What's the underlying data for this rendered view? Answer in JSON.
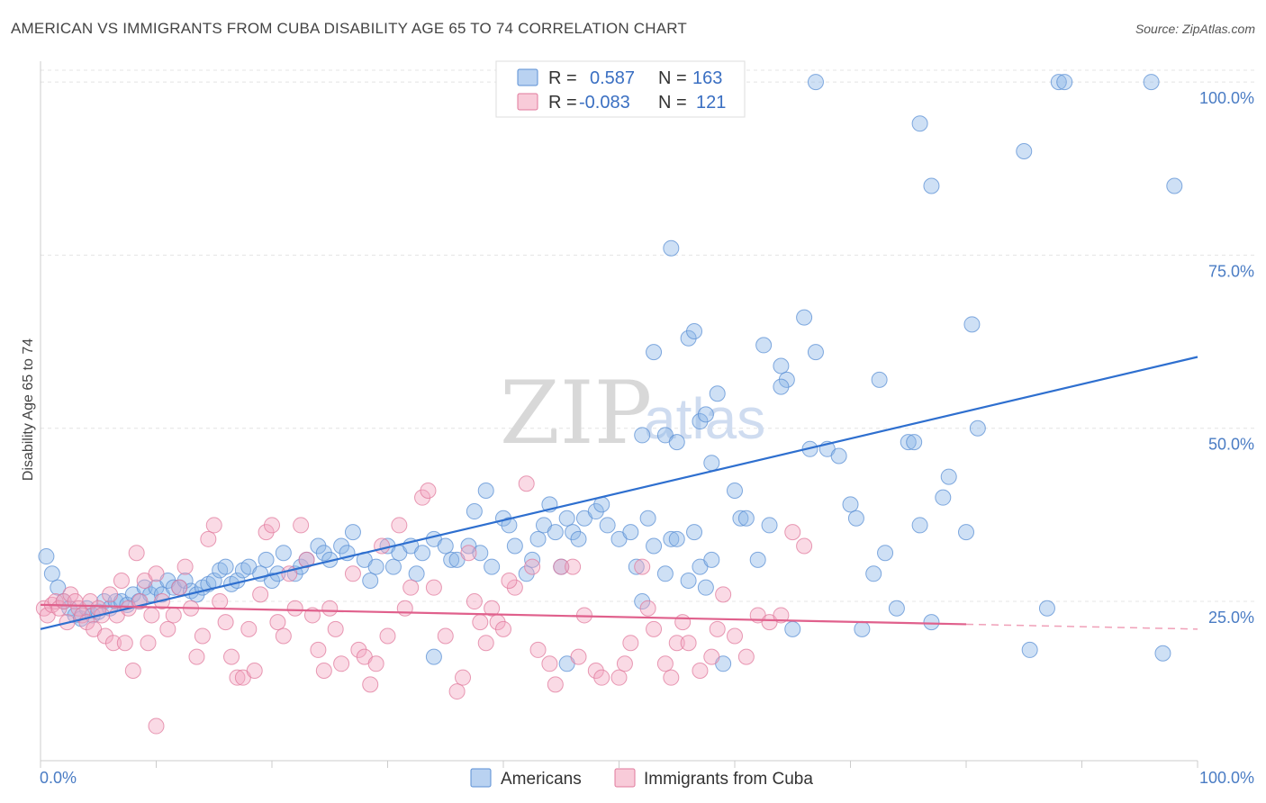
{
  "header": {
    "title": "AMERICAN VS IMMIGRANTS FROM CUBA DISABILITY AGE 65 TO 74 CORRELATION CHART",
    "source": "Source: ZipAtlas.com"
  },
  "watermark": {
    "zip": "ZIP",
    "atlas": "atlas"
  },
  "chart_data": {
    "type": "scatter",
    "title": "AMERICAN VS IMMIGRANTS FROM CUBA DISABILITY AGE 65 TO 74 CORRELATION CHART",
    "xlabel": "",
    "ylabel": "Disability Age 65 to 74",
    "xlim": [
      0,
      100
    ],
    "ylim": [
      2,
      103
    ],
    "x_tick_labels": [
      "0.0%",
      "100.0%"
    ],
    "y_ticks": [
      25,
      50,
      75,
      100
    ],
    "y_tick_labels": [
      "25.0%",
      "50.0%",
      "75.0%",
      "100.0%"
    ],
    "grid": true,
    "legend_position": "top-center",
    "legend": {
      "r_label": "R =",
      "n_label": "N =",
      "rows": [
        {
          "series": "Americans",
          "r": "0.587",
          "n": "163",
          "color": "#8ab4e8"
        },
        {
          "series": "Immigrants from Cuba",
          "r": "-0.083",
          "n": "121",
          "color": "#f4a8c0"
        }
      ]
    },
    "series": [
      {
        "name": "Americans",
        "color": "#8ab4e8",
        "stroke": "#5a8fd4",
        "trend": {
          "x": [
            0,
            100
          ],
          "y": [
            21.0,
            60.3
          ],
          "color": "#2e6fcf"
        },
        "points": [
          [
            0.5,
            31.5
          ],
          [
            1,
            29
          ],
          [
            1.5,
            27
          ],
          [
            2,
            25
          ],
          [
            2.5,
            24
          ],
          [
            3,
            23
          ],
          [
            3.5,
            22.5
          ],
          [
            4,
            24
          ],
          [
            4.5,
            23
          ],
          [
            5,
            23.5
          ],
          [
            5.5,
            25
          ],
          [
            6,
            24
          ],
          [
            6.5,
            25
          ],
          [
            7,
            25
          ],
          [
            7.5,
            24.5
          ],
          [
            8,
            26
          ],
          [
            8.5,
            25
          ],
          [
            9,
            27
          ],
          [
            9.5,
            26
          ],
          [
            10,
            27
          ],
          [
            10.5,
            26
          ],
          [
            11,
            28
          ],
          [
            11.5,
            27
          ],
          [
            12,
            27
          ],
          [
            12.5,
            28
          ],
          [
            13,
            26.5
          ],
          [
            13.5,
            26
          ],
          [
            14,
            27
          ],
          [
            14.5,
            27.5
          ],
          [
            15,
            28
          ],
          [
            15.5,
            29.5
          ],
          [
            16,
            30
          ],
          [
            16.5,
            27.5
          ],
          [
            17,
            28
          ],
          [
            17.5,
            29.5
          ],
          [
            18,
            30
          ],
          [
            19,
            29
          ],
          [
            19.5,
            31
          ],
          [
            20,
            28
          ],
          [
            20.5,
            29
          ],
          [
            21,
            32
          ],
          [
            22,
            29
          ],
          [
            22.5,
            30
          ],
          [
            23,
            31
          ],
          [
            24,
            33
          ],
          [
            24.5,
            32
          ],
          [
            25,
            31
          ],
          [
            26,
            33
          ],
          [
            26.5,
            32
          ],
          [
            27,
            35
          ],
          [
            28,
            31
          ],
          [
            28.5,
            28
          ],
          [
            29,
            30
          ],
          [
            30,
            33
          ],
          [
            30.5,
            30
          ],
          [
            31,
            32
          ],
          [
            32,
            33
          ],
          [
            32.5,
            29
          ],
          [
            33,
            32
          ],
          [
            34,
            34
          ],
          [
            35,
            33
          ],
          [
            35.5,
            31
          ],
          [
            36,
            31
          ],
          [
            37,
            33
          ],
          [
            37.5,
            38
          ],
          [
            38,
            32
          ],
          [
            38.5,
            41
          ],
          [
            39,
            30
          ],
          [
            40,
            37
          ],
          [
            40.5,
            36
          ],
          [
            41,
            33
          ],
          [
            42,
            29
          ],
          [
            42.5,
            31
          ],
          [
            43,
            34
          ],
          [
            43.5,
            36
          ],
          [
            44,
            39
          ],
          [
            44.5,
            35
          ],
          [
            45,
            30
          ],
          [
            45.5,
            37
          ],
          [
            46,
            35
          ],
          [
            46.5,
            34
          ],
          [
            47,
            37
          ],
          [
            48,
            38
          ],
          [
            48.5,
            39
          ],
          [
            49,
            36
          ],
          [
            50,
            34
          ],
          [
            51,
            35
          ],
          [
            51.5,
            30
          ],
          [
            52,
            25
          ],
          [
            52.5,
            37
          ],
          [
            53,
            33
          ],
          [
            54,
            29
          ],
          [
            54.5,
            34
          ],
          [
            55,
            34
          ],
          [
            56,
            28
          ],
          [
            56.5,
            35
          ],
          [
            57,
            30
          ],
          [
            57.5,
            27
          ],
          [
            58,
            31
          ],
          [
            52,
            49
          ],
          [
            53,
            61
          ],
          [
            54,
            49
          ],
          [
            55,
            48
          ],
          [
            56,
            63
          ],
          [
            56.5,
            64
          ],
          [
            57,
            51
          ],
          [
            57.5,
            52
          ],
          [
            58,
            45
          ],
          [
            58.5,
            55
          ],
          [
            60,
            41
          ],
          [
            60.5,
            37
          ],
          [
            61,
            37
          ],
          [
            62,
            31
          ],
          [
            62.5,
            62
          ],
          [
            63,
            36
          ],
          [
            64,
            59
          ],
          [
            64.5,
            57
          ],
          [
            64,
            56
          ],
          [
            65,
            21
          ],
          [
            66,
            66
          ],
          [
            66.5,
            47
          ],
          [
            67,
            61
          ],
          [
            68,
            47
          ],
          [
            69,
            46
          ],
          [
            70,
            39
          ],
          [
            70.5,
            37
          ],
          [
            71,
            21
          ],
          [
            72,
            29
          ],
          [
            72.5,
            57
          ],
          [
            73,
            32
          ],
          [
            74,
            24
          ],
          [
            75,
            48
          ],
          [
            75.5,
            48
          ],
          [
            76,
            36
          ],
          [
            77,
            22
          ],
          [
            78,
            40
          ],
          [
            78.5,
            43
          ],
          [
            80,
            35
          ],
          [
            80.5,
            65
          ],
          [
            81,
            50
          ],
          [
            67,
            100
          ],
          [
            76,
            94
          ],
          [
            77,
            85
          ],
          [
            85,
            90
          ],
          [
            88,
            100
          ],
          [
            88.5,
            100
          ],
          [
            96,
            100
          ],
          [
            98,
            85
          ],
          [
            54.5,
            76
          ],
          [
            85.5,
            18
          ],
          [
            87,
            24
          ],
          [
            97,
            17.5
          ],
          [
            45.5,
            16
          ],
          [
            59,
            16
          ],
          [
            34,
            17
          ]
        ]
      },
      {
        "name": "Immigrants from Cuba",
        "color": "#f4a8c0",
        "stroke": "#e07a9c",
        "trend": {
          "x": [
            0,
            80
          ],
          "y": [
            24.5,
            21.7
          ],
          "color": "#e0608c"
        },
        "trend_dashed": {
          "x": [
            80,
            100
          ],
          "y": [
            21.7,
            21.0
          ],
          "color": "#f0a0b8"
        },
        "points": [
          [
            0.3,
            24
          ],
          [
            0.6,
            23
          ],
          [
            1,
            24.5
          ],
          [
            1.3,
            25
          ],
          [
            1.6,
            24
          ],
          [
            2,
            25
          ],
          [
            2.3,
            22
          ],
          [
            2.6,
            26
          ],
          [
            3,
            25
          ],
          [
            3.3,
            24
          ],
          [
            3.6,
            23
          ],
          [
            4,
            22
          ],
          [
            4.3,
            25
          ],
          [
            4.6,
            21
          ],
          [
            5,
            24
          ],
          [
            5.3,
            23
          ],
          [
            5.6,
            20
          ],
          [
            6,
            26
          ],
          [
            6.3,
            19
          ],
          [
            6.6,
            23
          ],
          [
            7,
            28
          ],
          [
            7.3,
            19
          ],
          [
            7.6,
            24
          ],
          [
            8,
            15
          ],
          [
            8.3,
            32
          ],
          [
            8.6,
            25
          ],
          [
            9,
            28
          ],
          [
            9.3,
            19
          ],
          [
            9.6,
            23
          ],
          [
            10,
            29
          ],
          [
            10.5,
            25
          ],
          [
            11,
            21
          ],
          [
            11.5,
            23
          ],
          [
            12,
            27
          ],
          [
            12.5,
            30
          ],
          [
            13,
            24
          ],
          [
            13.5,
            17
          ],
          [
            14,
            20
          ],
          [
            14.5,
            34
          ],
          [
            15,
            36
          ],
          [
            15.5,
            25
          ],
          [
            16,
            22
          ],
          [
            16.5,
            17
          ],
          [
            17,
            14
          ],
          [
            17.5,
            14
          ],
          [
            18,
            21
          ],
          [
            18.5,
            15
          ],
          [
            19,
            26
          ],
          [
            19.5,
            35
          ],
          [
            20,
            36
          ],
          [
            20.5,
            22
          ],
          [
            21,
            20
          ],
          [
            21.5,
            29
          ],
          [
            22,
            24
          ],
          [
            22.5,
            36
          ],
          [
            23,
            31
          ],
          [
            23.5,
            23
          ],
          [
            24,
            18
          ],
          [
            24.5,
            15
          ],
          [
            25,
            24
          ],
          [
            25.5,
            21
          ],
          [
            26,
            16
          ],
          [
            27,
            29
          ],
          [
            27.5,
            18
          ],
          [
            28,
            17
          ],
          [
            28.5,
            13
          ],
          [
            29,
            16
          ],
          [
            29.5,
            33
          ],
          [
            30,
            20
          ],
          [
            31,
            36
          ],
          [
            31.5,
            24
          ],
          [
            32,
            27
          ],
          [
            33,
            40
          ],
          [
            33.5,
            41
          ],
          [
            34,
            27
          ],
          [
            35,
            20
          ],
          [
            36,
            12
          ],
          [
            36.5,
            14
          ],
          [
            37,
            32
          ],
          [
            37.5,
            25
          ],
          [
            38,
            22
          ],
          [
            38.5,
            19
          ],
          [
            39,
            24
          ],
          [
            39.5,
            22
          ],
          [
            40,
            21
          ],
          [
            41,
            27
          ],
          [
            42,
            42
          ],
          [
            42.5,
            30
          ],
          [
            43,
            18
          ],
          [
            44,
            16
          ],
          [
            44.5,
            13
          ],
          [
            45,
            30
          ],
          [
            46,
            30
          ],
          [
            46.5,
            17
          ],
          [
            47,
            23
          ],
          [
            48,
            15
          ],
          [
            48.5,
            14
          ],
          [
            50,
            14
          ],
          [
            50.5,
            16
          ],
          [
            51,
            19
          ],
          [
            52,
            30
          ],
          [
            52.5,
            24
          ],
          [
            53,
            21
          ],
          [
            54,
            16
          ],
          [
            54.5,
            14
          ],
          [
            55,
            19
          ],
          [
            56,
            19
          ],
          [
            57,
            15
          ],
          [
            58,
            17
          ],
          [
            59,
            26
          ],
          [
            60,
            20
          ],
          [
            61,
            17
          ],
          [
            62,
            23
          ],
          [
            63,
            22
          ],
          [
            64,
            23
          ],
          [
            65,
            35
          ],
          [
            66,
            33
          ],
          [
            55.5,
            22
          ],
          [
            58.5,
            21
          ],
          [
            40.5,
            28
          ],
          [
            10,
            7
          ]
        ]
      }
    ]
  },
  "bottom_legend": [
    {
      "label": "Americans",
      "color": "#8ab4e8",
      "stroke": "#5a8fd4"
    },
    {
      "label": "Immigrants from Cuba",
      "color": "#f4a8c0",
      "stroke": "#e07a9c"
    }
  ]
}
